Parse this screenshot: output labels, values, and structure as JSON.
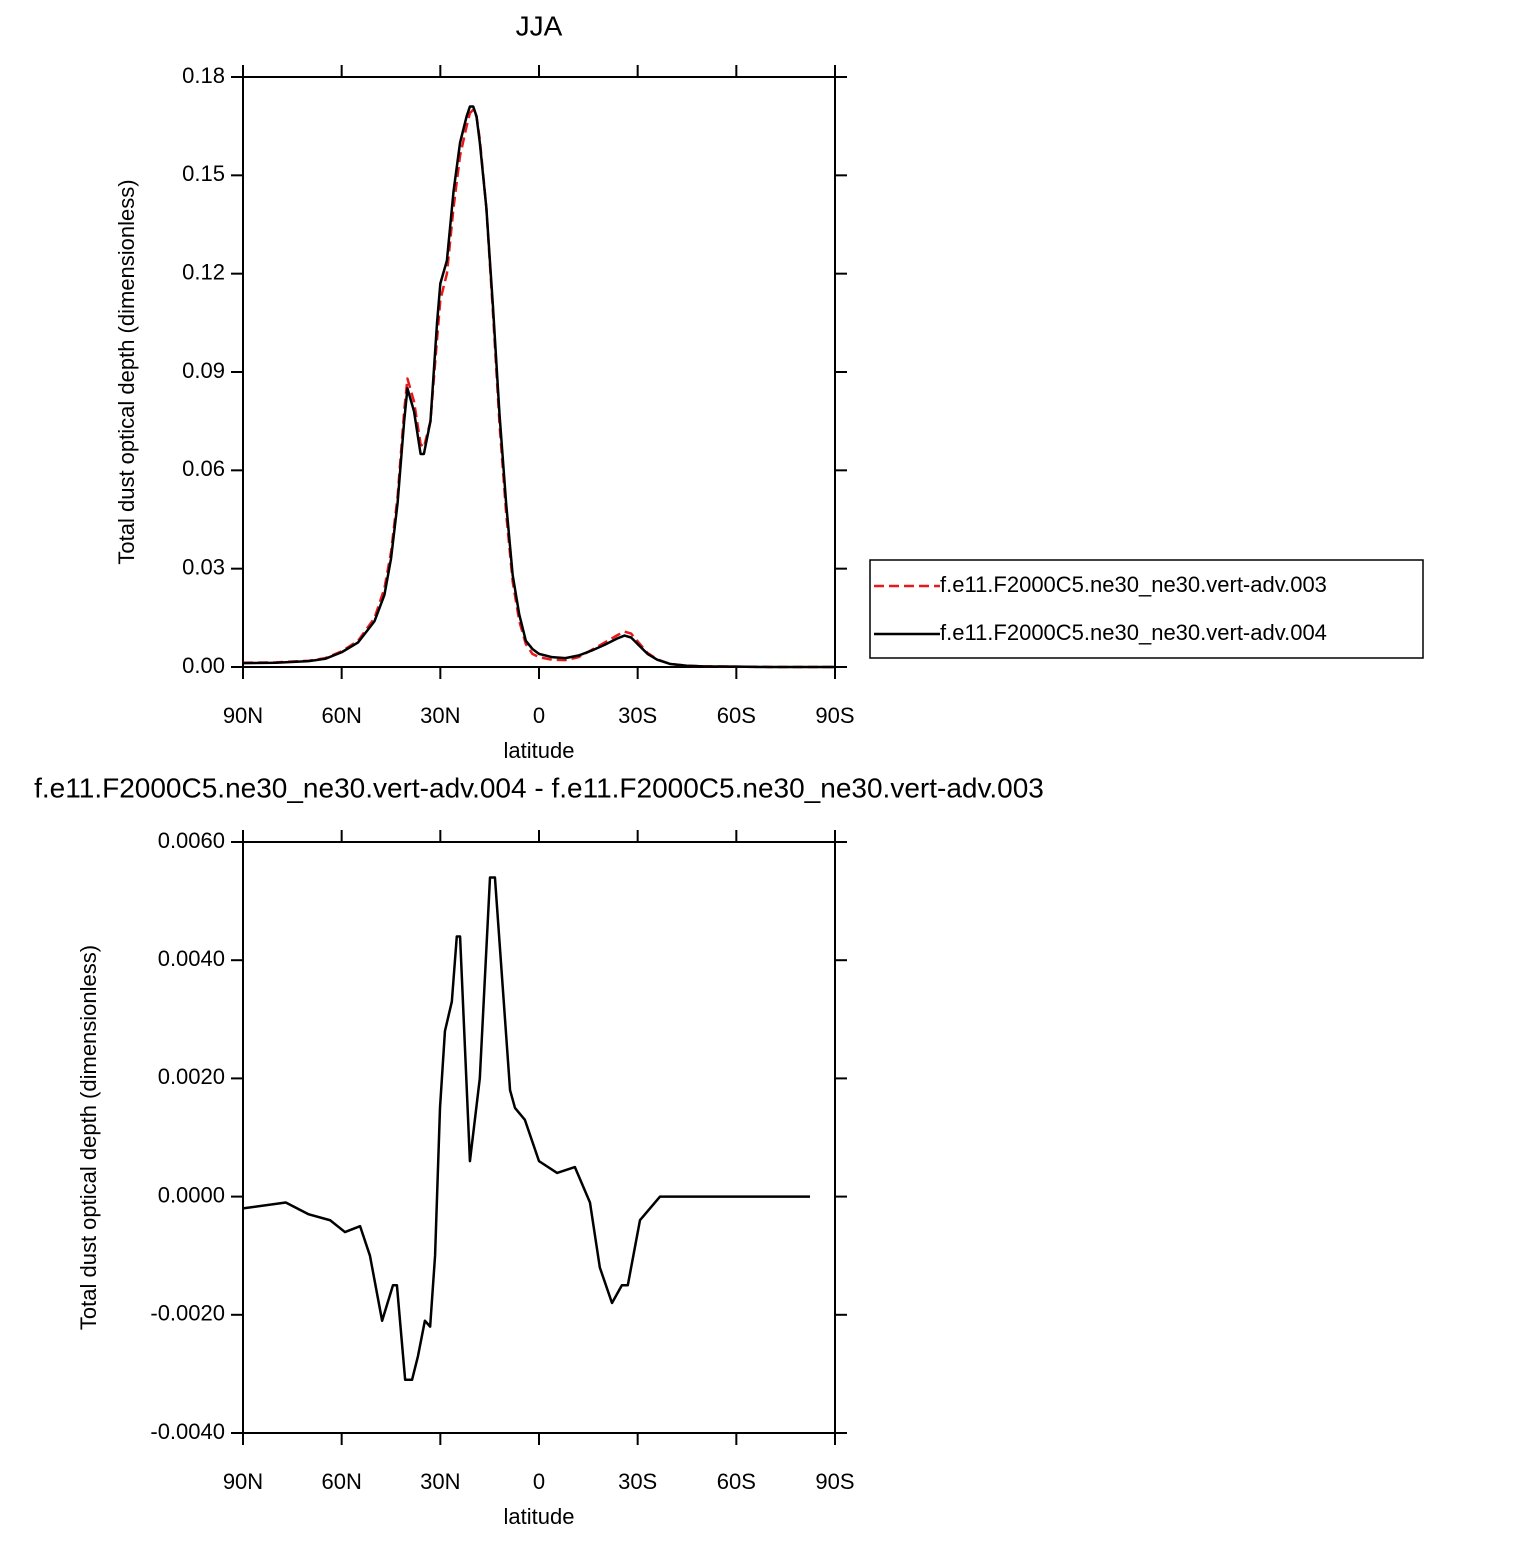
{
  "chart_data": [
    {
      "type": "line",
      "title": "JJA",
      "xlabel": "latitude",
      "ylabel": "Total dust optical depth (dimensionless)",
      "x": [
        90,
        80,
        70,
        65,
        60,
        55,
        50,
        47,
        45,
        43,
        41,
        40,
        38,
        36,
        35,
        33,
        31,
        30,
        28,
        26,
        24,
        22,
        21,
        20,
        19,
        18,
        16,
        14,
        12,
        10,
        8,
        6,
        4,
        2,
        0,
        -4,
        -8,
        -12,
        -16,
        -20,
        -24,
        -26,
        -28,
        -30,
        -33,
        -36,
        -40,
        -45,
        -50,
        -60,
        -70,
        -80,
        -90
      ],
      "series": [
        {
          "name": "f.e11.F2000C5.ne30_ne30.vert-adv.003",
          "color": "#e8191b",
          "linestyle": "dashed",
          "values": [
            0.0013,
            0.0014,
            0.0019,
            0.0027,
            0.0048,
            0.008,
            0.015,
            0.024,
            0.035,
            0.052,
            0.078,
            0.088,
            0.081,
            0.068,
            0.067,
            0.075,
            0.1,
            0.112,
            0.12,
            0.14,
            0.156,
            0.165,
            0.169,
            0.17,
            0.168,
            0.161,
            0.14,
            0.108,
            0.074,
            0.047,
            0.026,
            0.014,
            0.007,
            0.004,
            0.003,
            0.0022,
            0.0021,
            0.003,
            0.0052,
            0.0075,
            0.0098,
            0.0108,
            0.0102,
            0.0078,
            0.0043,
            0.0023,
            0.0009,
            0.0004,
            0.0002,
            0.0001,
            0,
            0,
            0
          ]
        },
        {
          "name": "f.e11.F2000C5.ne30_ne30.vert-adv.004",
          "color": "#000000",
          "linestyle": "solid",
          "values": [
            0.0012,
            0.0013,
            0.0018,
            0.0025,
            0.0045,
            0.0075,
            0.014,
            0.022,
            0.033,
            0.05,
            0.075,
            0.085,
            0.078,
            0.065,
            0.065,
            0.075,
            0.105,
            0.117,
            0.124,
            0.145,
            0.16,
            0.168,
            0.171,
            0.171,
            0.168,
            0.16,
            0.14,
            0.11,
            0.077,
            0.05,
            0.028,
            0.016,
            0.008,
            0.0055,
            0.004,
            0.003,
            0.0027,
            0.0035,
            0.005,
            0.0068,
            0.0088,
            0.0096,
            0.009,
            0.007,
            0.004,
            0.0022,
            0.0009,
            0.0004,
            0.0002,
            0.0001,
            0,
            0,
            0
          ]
        }
      ],
      "xlim": [
        90,
        -90
      ],
      "xticks": [
        {
          "value": 90,
          "label": "90N"
        },
        {
          "value": 60,
          "label": "60N"
        },
        {
          "value": 30,
          "label": "30N"
        },
        0,
        {
          "value": -30,
          "label": "30S"
        },
        {
          "value": -60,
          "label": "60S"
        },
        {
          "value": -90,
          "label": "90S"
        }
      ],
      "ylim": [
        0,
        0.18
      ],
      "yticks": [
        {
          "value": 0,
          "label": "0.00"
        },
        0.03,
        0.06,
        0.09,
        0.12,
        0.15,
        0.18
      ],
      "legend": "right"
    },
    {
      "type": "line",
      "title": "f.e11.F2000C5.ne30_ne30.vert-adv.004 - f.e11.F2000C5.ne30_ne30.vert-adv.003",
      "xlabel": "latitude",
      "ylabel": "Total dust optical depth (dimensionless)",
      "x": [
        90,
        77,
        70,
        63.5,
        59,
        54.4,
        51.4,
        47.7,
        44.4,
        43.2,
        40.7,
        38.6,
        36.8,
        34.7,
        33.1,
        31.6,
        30.1,
        28.6,
        26.5,
        25,
        24,
        21,
        18,
        14.9,
        13.4,
        8.8,
        7.3,
        4.3,
        0,
        -5.5,
        -10.9,
        -15.5,
        -18.5,
        -22.2,
        -25.2,
        -27,
        -30.7,
        -36.8,
        -42.9,
        -49,
        -64,
        -82.4
      ],
      "series": [
        {
          "color": "#000000",
          "linestyle": "solid",
          "values": [
            -0.0002,
            -0.0001,
            -0.0003,
            -0.0004,
            -0.0006,
            -0.0005,
            -0.001,
            -0.0021,
            -0.0015,
            -0.0015,
            -0.0031,
            -0.0031,
            -0.0027,
            -0.0021,
            -0.0022,
            -0.001,
            0.0015,
            0.0028,
            0.0033,
            0.0044,
            0.0044,
            0.0006,
            0.002,
            0.0054,
            0.0054,
            0.0018,
            0.0015,
            0.0013,
            0.0006,
            0.0004,
            0.0005,
            -0.0001,
            -0.0012,
            -0.0018,
            -0.0015,
            -0.0015,
            -0.0004,
            0,
            0,
            0,
            0,
            0
          ]
        }
      ],
      "xlim": [
        90,
        -90
      ],
      "xticks": [
        {
          "value": 90,
          "label": "90N"
        },
        {
          "value": 60,
          "label": "60N"
        },
        {
          "value": 30,
          "label": "30N"
        },
        0,
        {
          "value": -30,
          "label": "30S"
        },
        {
          "value": -60,
          "label": "60S"
        },
        {
          "value": -90,
          "label": "90S"
        }
      ],
      "ylim": [
        -0.004,
        0.006
      ],
      "yticks": [
        {
          "value": -0.004,
          "label": "-0.0040"
        },
        {
          "value": -0.002,
          "label": "-0.0020"
        },
        {
          "value": 0,
          "label": "0.0000"
        },
        {
          "value": 0.002,
          "label": "0.0020"
        },
        {
          "value": 0.004,
          "label": "0.0040"
        },
        {
          "value": 0.006,
          "label": "0.0060"
        }
      ]
    }
  ]
}
